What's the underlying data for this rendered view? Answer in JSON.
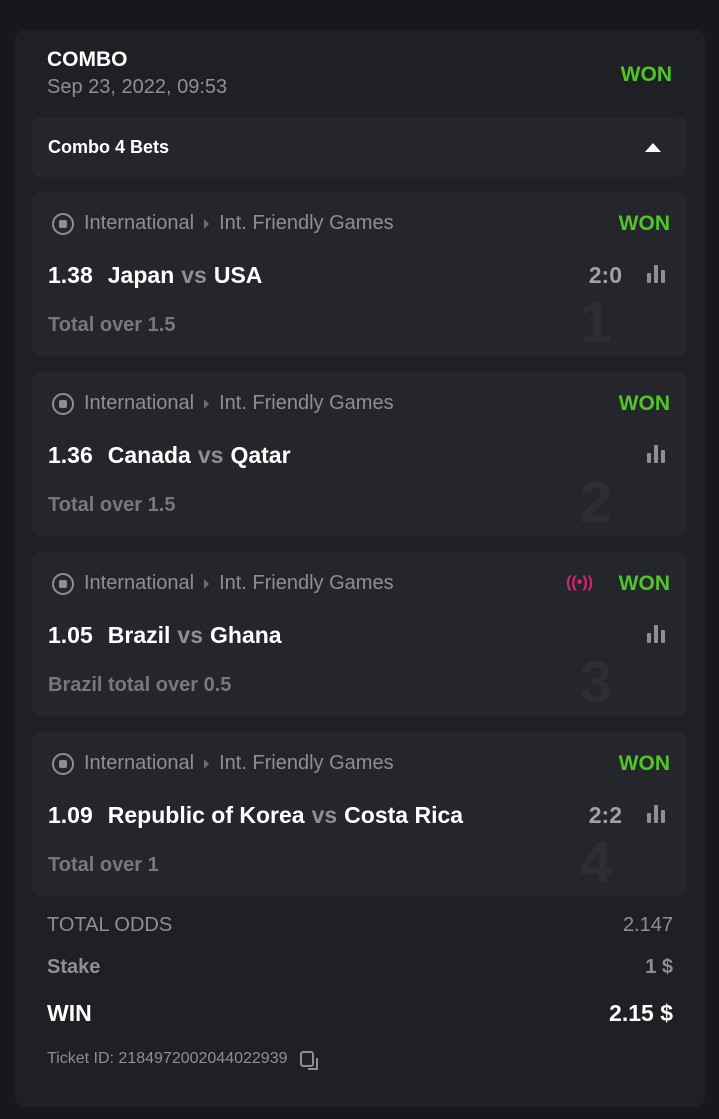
{
  "header": {
    "title": "COMBO",
    "date": "Sep 23, 2022, 09:53",
    "status": "WON"
  },
  "combo": {
    "label": "Combo 4 Bets"
  },
  "colors": {
    "won": "#4fc528",
    "live": "#d6246e"
  },
  "events": [
    {
      "number": "1",
      "sport_icon": "soccer-ball-icon",
      "category": "International",
      "league": "Int. Friendly Games",
      "status": "WON",
      "live": false,
      "odds": "1.38",
      "home": "Japan",
      "vs": "vs",
      "away": "USA",
      "score": "2:0",
      "market": "Total over 1.5"
    },
    {
      "number": "2",
      "sport_icon": "soccer-ball-icon",
      "category": "International",
      "league": "Int. Friendly Games",
      "status": "WON",
      "live": false,
      "odds": "1.36",
      "home": "Canada",
      "vs": "vs",
      "away": "Qatar",
      "score": "",
      "market": "Total over 1.5"
    },
    {
      "number": "3",
      "sport_icon": "soccer-ball-icon",
      "category": "International",
      "league": "Int. Friendly Games",
      "status": "WON",
      "live": true,
      "odds": "1.05",
      "home": "Brazil",
      "vs": "vs",
      "away": "Ghana",
      "score": "",
      "market": "Brazil total over 0.5"
    },
    {
      "number": "4",
      "sport_icon": "soccer-ball-icon",
      "category": "International",
      "league": "Int. Friendly Games",
      "status": "WON",
      "live": false,
      "odds": "1.09",
      "home": "Republic of Korea",
      "vs": "vs",
      "away": "Costa Rica",
      "score": "2:2",
      "market": "Total over 1"
    }
  ],
  "summary": {
    "total_odds_label": "TOTAL ODDS",
    "total_odds": "2.147",
    "stake_label": "Stake",
    "stake": "1 $",
    "win_label": "WIN",
    "win": "2.15 $",
    "ticket_label": "Ticket ID:",
    "ticket_id": "2184972002044022939"
  }
}
